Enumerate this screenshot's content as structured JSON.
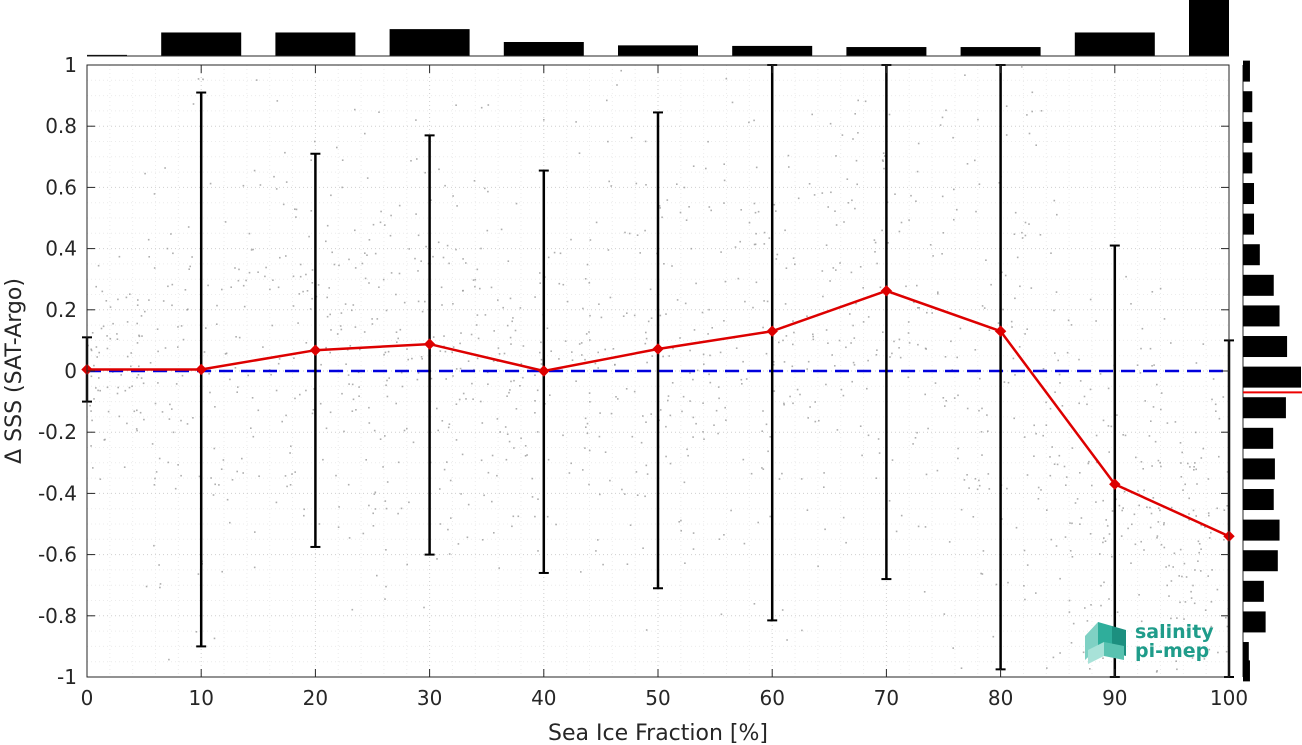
{
  "chart_data": {
    "type": "line",
    "xlabel": "Sea Ice Fraction [%]",
    "ylabel": "Δ SSS (SAT-Argo)",
    "xlim": [
      0,
      100
    ],
    "ylim": [
      -1,
      1
    ],
    "xticks": [
      "0",
      "10",
      "20",
      "30",
      "40",
      "50",
      "60",
      "70",
      "80",
      "90",
      "100"
    ],
    "yticks": [
      "-1",
      "-0.8",
      "-0.6",
      "-0.4",
      "-0.2",
      "0",
      "0.2",
      "0.4",
      "0.6",
      "0.8",
      "1"
    ],
    "grid": true,
    "series": [
      {
        "color": "#dd0000",
        "marker": "diamond",
        "x": [
          0,
          10,
          20,
          30,
          40,
          50,
          60,
          70,
          80,
          90,
          100
        ],
        "y": [
          0.005,
          0.005,
          0.068,
          0.088,
          0.0,
          0.072,
          0.13,
          0.262,
          0.13,
          -0.37,
          -0.54
        ],
        "error_upper": [
          0.11,
          0.91,
          0.71,
          0.77,
          0.655,
          0.845,
          1.0,
          1.0,
          1.0,
          0.41,
          0.1
        ],
        "error_lower": [
          -0.1,
          -0.9,
          -0.575,
          -0.6,
          -0.66,
          -0.71,
          -0.815,
          -0.68,
          -0.975,
          -1.0,
          -1.0
        ]
      }
    ],
    "reference_line": {
      "y": 0,
      "color": "#0000dd",
      "style": "dashed"
    },
    "top_histogram": {
      "bin_centers": [
        0,
        10,
        20,
        30,
        40,
        50,
        60,
        70,
        80,
        90,
        100
      ],
      "relative_heights": [
        0.02,
        0.42,
        0.42,
        0.48,
        0.25,
        0.19,
        0.18,
        0.16,
        0.16,
        0.42,
        1.0
      ]
    },
    "right_histogram": {
      "bin_centers": [
        0.98,
        0.88,
        0.78,
        0.68,
        0.58,
        0.48,
        0.38,
        0.28,
        0.18,
        0.08,
        -0.02,
        -0.12,
        -0.22,
        -0.32,
        -0.42,
        -0.52,
        -0.62,
        -0.72,
        -0.82,
        -0.92,
        -0.98
      ],
      "relative_heights": [
        0.12,
        0.16,
        0.16,
        0.16,
        0.19,
        0.19,
        0.29,
        0.53,
        0.63,
        0.76,
        1.0,
        0.74,
        0.52,
        0.55,
        0.53,
        0.63,
        0.6,
        0.36,
        0.39,
        0.1,
        0.12
      ],
      "median_marker": {
        "y": -0.07,
        "color": "#ee0000"
      }
    },
    "scatter_color": "#9a9a9a"
  },
  "logo": {
    "line1": "salinity",
    "line2": "pi-mep",
    "color": "#1f9c8a"
  }
}
